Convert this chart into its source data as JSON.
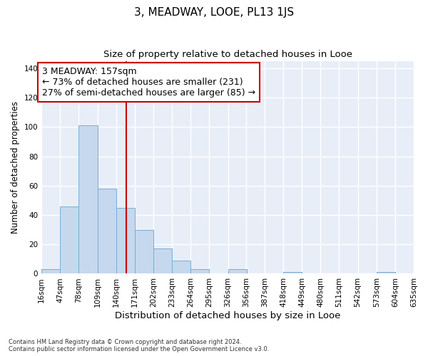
{
  "title": "3, MEADWAY, LOOE, PL13 1JS",
  "subtitle": "Size of property relative to detached houses in Looe",
  "xlabel": "Distribution of detached houses by size in Looe",
  "ylabel": "Number of detached properties",
  "footnote": "Contains HM Land Registry data © Crown copyright and database right 2024.\nContains public sector information licensed under the Open Government Licence v3.0.",
  "bin_edges": [
    16,
    47,
    78,
    109,
    140,
    171,
    202,
    233,
    264,
    295,
    326,
    356,
    387,
    418,
    449,
    480,
    511,
    542,
    573,
    604,
    635
  ],
  "bar_heights": [
    3,
    46,
    101,
    58,
    45,
    30,
    17,
    9,
    3,
    0,
    3,
    0,
    0,
    1,
    0,
    0,
    0,
    0,
    1,
    0
  ],
  "bar_color": "#c5d8ee",
  "bar_edge_color": "#7aadd4",
  "vline_x": 157,
  "vline_color": "#cc0000",
  "annotation_text": "3 MEADWAY: 157sqm\n← 73% of detached houses are smaller (231)\n27% of semi-detached houses are larger (85) →",
  "annotation_box_color": "#ffffff",
  "annotation_box_edge": "#cc0000",
  "annotation_fontsize": 9,
  "ylim": [
    0,
    145
  ],
  "yticks": [
    0,
    20,
    40,
    60,
    80,
    100,
    120,
    140
  ],
  "background_color": "#e8eef8",
  "grid_color": "#ffffff",
  "title_fontsize": 11,
  "subtitle_fontsize": 9.5,
  "xlabel_fontsize": 9.5,
  "ylabel_fontsize": 8.5,
  "tick_fontsize": 7.5
}
